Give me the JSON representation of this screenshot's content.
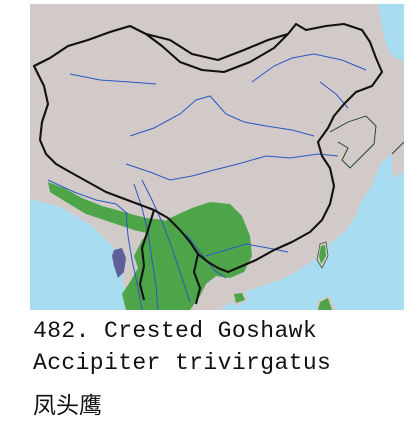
{
  "species": {
    "number_line": "482. Crested Goshawk",
    "scientific_name": "Accipiter trivirgatus",
    "chinese_name": "凤头鹰"
  },
  "colors": {
    "land": "#d2cac8",
    "sea": "#a8dcf0",
    "range_resident": "#4ea549",
    "range_other": "#5f5f9c",
    "border": "#111111",
    "river": "#2a58c4"
  }
}
